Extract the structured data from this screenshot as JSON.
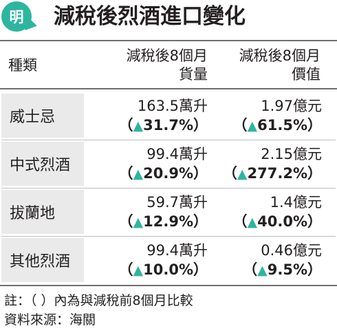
{
  "title": {
    "badge": "明",
    "text": "減稅後烈酒進口變化"
  },
  "header": {
    "type": "種類",
    "volume_line1": "減稅後8個月",
    "volume_line2": "貨量",
    "value_line1": "減稅後8個月",
    "value_line2": "價值"
  },
  "rows": [
    {
      "type": "威士忌",
      "volume": "163.5萬升",
      "volume_change": "31.7%",
      "value": "1.97億元",
      "value_change": "61.5%"
    },
    {
      "type": "中式烈酒",
      "volume": "99.4萬升",
      "volume_change": "20.9%",
      "value": "2.15億元",
      "value_change": "277.2%"
    },
    {
      "type": "拔蘭地",
      "volume": "59.7萬升",
      "volume_change": "12.9%",
      "value": "1.4億元",
      "value_change": "40.0%"
    },
    {
      "type": "其他烈酒",
      "volume": "99.4萬升",
      "volume_change": "10.0%",
      "value": "0.46億元",
      "value_change": "9.5%"
    }
  ],
  "symbols": {
    "open_paren": "（",
    "close_paren": "）",
    "up_arrow": "▲"
  },
  "notes": {
    "note": "註：（ ）內為與減稅前8個月比較",
    "source": "資料來源：海關"
  },
  "colors": {
    "accent": "#2eb5a0",
    "row_bg": "#eaeaea",
    "text": "#231f20"
  }
}
